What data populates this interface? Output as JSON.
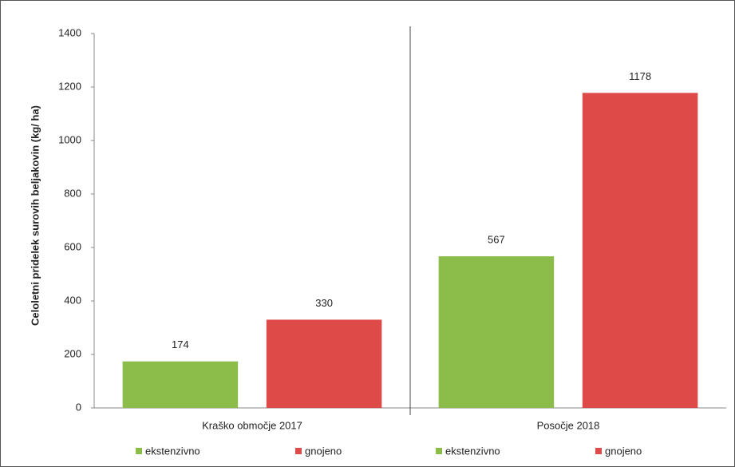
{
  "chart_data": {
    "type": "bar",
    "y_label": "Celoletni pridelek surovih beljakovin (kg/ ha)",
    "categories": [
      "Kraško območje 2017",
      "Posočje 2018"
    ],
    "series": [
      {
        "name": "ekstenzivno",
        "color": "#8cbd4a",
        "values": [
          174,
          null
        ]
      },
      {
        "name": "gnojeno",
        "color": "#de4a48",
        "values": [
          330,
          null
        ]
      },
      {
        "name": "ekstenzivno",
        "color": "#8cbd4a",
        "values": [
          null,
          567
        ]
      },
      {
        "name": "gnojeno",
        "color": "#de4a48",
        "values": [
          null,
          1178
        ]
      }
    ],
    "ylim": [
      0,
      1400
    ],
    "yticks": [
      0,
      200,
      400,
      600,
      800,
      1000,
      1200,
      1400
    ],
    "grid": false
  }
}
